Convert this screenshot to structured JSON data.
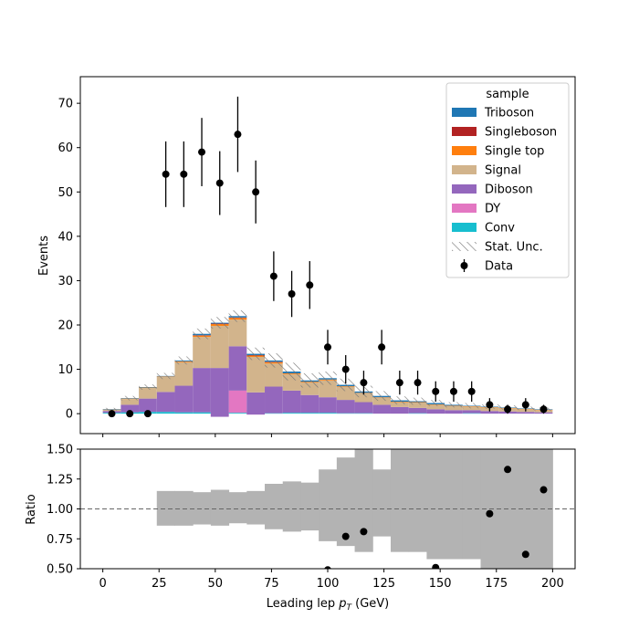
{
  "chart_data": [
    {
      "type": "bar",
      "panel": "main",
      "stacked": true,
      "xlabel": "",
      "ylabel": "Events",
      "xlim": [
        -10,
        210
      ],
      "ylim": [
        -4.5,
        76
      ],
      "yticks": [
        0,
        10,
        20,
        30,
        40,
        50,
        60,
        70
      ],
      "xticks": [
        0,
        25,
        50,
        75,
        100,
        125,
        150,
        175,
        200
      ],
      "bin_edges": [
        0,
        8,
        16,
        24,
        32,
        40,
        48,
        56,
        64,
        72,
        80,
        88,
        96,
        104,
        112,
        120,
        128,
        136,
        144,
        152,
        160,
        168,
        176,
        184,
        192,
        200
      ],
      "legend": {
        "title": "sample",
        "placement": "top-right",
        "entries": [
          {
            "label": "Triboson",
            "color": "#1f77b4",
            "kind": "patch"
          },
          {
            "label": "Singleboson",
            "color": "#b22222",
            "kind": "patch"
          },
          {
            "label": "Single top",
            "color": "#ff7f0e",
            "kind": "patch"
          },
          {
            "label": "Signal",
            "color": "#d2b48c",
            "kind": "patch"
          },
          {
            "label": "Diboson",
            "color": "#9467bd",
            "kind": "patch"
          },
          {
            "label": "DY",
            "color": "#e377c2",
            "kind": "patch"
          },
          {
            "label": "Conv",
            "color": "#17becf",
            "kind": "patch"
          },
          {
            "label": "Stat. Unc.",
            "color": "#888888",
            "kind": "hatch"
          },
          {
            "label": "Data",
            "color": "#000000",
            "kind": "errorbar"
          }
        ]
      },
      "stack_total": [
        1.0,
        3.5,
        6.0,
        8.5,
        12.0,
        18.0,
        20.5,
        22.0,
        13.5,
        12.0,
        9.5,
        7.5,
        8.0,
        6.5,
        5.0,
        4.0,
        3.0,
        2.8,
        2.4,
        2.0,
        1.8,
        1.6,
        1.4,
        1.2,
        1.0
      ],
      "series": [
        {
          "name": "Conv",
          "color": "#17becf",
          "values": [
            0.2,
            0.3,
            0.4,
            0.4,
            0.3,
            0.3,
            0.3,
            0.2,
            0.8,
            0.1,
            0.2,
            0.2,
            0.2,
            0.1,
            0.1,
            0.0,
            0.0,
            0.1,
            0.0,
            0.0,
            0.1,
            0.0,
            0.0,
            0.0,
            0.0
          ]
        },
        {
          "name": "DY",
          "color": "#e377c2",
          "values": [
            0.0,
            0.0,
            0.0,
            0.0,
            0.0,
            0.0,
            -1.0,
            5.0,
            -1.0,
            0.0,
            0.0,
            0.0,
            0.0,
            0.0,
            0.0,
            0.0,
            0.0,
            0.0,
            0.0,
            0.0,
            0.0,
            0.0,
            0.0,
            0.0,
            0.0
          ]
        },
        {
          "name": "Diboson",
          "color": "#9467bd",
          "values": [
            0.4,
            1.7,
            3.0,
            4.5,
            6.0,
            10.0,
            11.0,
            10.0,
            5.0,
            6.0,
            5.0,
            4.0,
            3.5,
            3.0,
            2.5,
            2.0,
            1.5,
            1.2,
            1.0,
            0.8,
            0.7,
            0.6,
            0.5,
            0.4,
            0.3
          ]
        },
        {
          "name": "Signal",
          "color": "#d2b48c",
          "values": [
            0.3,
            1.3,
            2.5,
            3.4,
            5.3,
            7.0,
            9.5,
            6.0,
            8.0,
            5.2,
            3.7,
            2.8,
            3.8,
            3.0,
            2.0,
            1.6,
            1.1,
            1.2,
            1.0,
            0.9,
            0.8,
            0.8,
            0.7,
            0.6,
            0.5
          ]
        },
        {
          "name": "Single top",
          "color": "#ff7f0e",
          "values": [
            0.05,
            0.1,
            0.05,
            0.1,
            0.2,
            0.3,
            0.4,
            0.4,
            0.3,
            0.3,
            0.2,
            0.2,
            0.2,
            0.1,
            0.1,
            0.1,
            0.1,
            0.1,
            0.1,
            0.1,
            0.1,
            0.1,
            0.1,
            0.1,
            0.1
          ]
        },
        {
          "name": "Singleboson",
          "color": "#b22222",
          "values": [
            0.0,
            0.0,
            0.0,
            0.0,
            0.0,
            0.1,
            0.1,
            0.1,
            0.1,
            0.1,
            0.0,
            0.0,
            0.0,
            0.0,
            0.0,
            0.0,
            0.0,
            0.0,
            0.0,
            0.0,
            0.0,
            0.0,
            0.0,
            0.0,
            0.0
          ]
        },
        {
          "name": "Triboson",
          "color": "#1f77b4",
          "values": [
            0.05,
            0.1,
            0.05,
            0.1,
            0.2,
            0.3,
            0.2,
            0.3,
            0.3,
            0.3,
            0.4,
            0.3,
            0.3,
            0.3,
            0.3,
            0.3,
            0.3,
            0.2,
            0.3,
            0.2,
            0.1,
            0.1,
            0.1,
            0.1,
            0.1
          ]
        }
      ],
      "stat_unc": [
        0.3,
        0.5,
        0.6,
        0.7,
        0.9,
        1.2,
        1.3,
        1.3,
        1.4,
        1.6,
        2.0,
        1.6,
        1.5,
        1.4,
        1.3,
        1.1,
        0.9,
        0.8,
        0.7,
        0.6,
        0.6,
        0.5,
        0.5,
        0.4,
        0.4
      ],
      "data": {
        "name": "Data",
        "x": [
          4,
          12,
          20,
          28,
          36,
          44,
          52,
          60,
          68,
          76,
          84,
          92,
          100,
          108,
          116,
          124,
          132,
          140,
          148,
          156,
          164,
          172,
          180,
          188,
          196
        ],
        "y": [
          0,
          0,
          0,
          54,
          54,
          59,
          52,
          63,
          50,
          31,
          27,
          29,
          15,
          10,
          7,
          15,
          7,
          7,
          5,
          5,
          5,
          2,
          1,
          2,
          1
        ],
        "yerr": [
          0,
          0,
          0,
          7.4,
          7.4,
          7.7,
          7.2,
          8.5,
          7.1,
          5.6,
          5.2,
          5.4,
          3.9,
          3.2,
          2.7,
          3.9,
          2.7,
          2.7,
          2.3,
          2.3,
          2.3,
          1.5,
          1.0,
          1.5,
          1.0
        ]
      }
    },
    {
      "type": "scatter",
      "panel": "ratio",
      "xlabel": "Leading lep $p_T$ (GeV)",
      "ylabel": "Ratio",
      "xlim": [
        -10,
        210
      ],
      "ylim": [
        0.5,
        1.5
      ],
      "yticks": [
        0.5,
        0.75,
        1.0,
        1.25,
        1.5
      ],
      "ytick_labels": [
        "0.50",
        "0.75",
        "1.00",
        "1.25",
        "1.50"
      ],
      "xticks": [
        0,
        25,
        50,
        75,
        100,
        125,
        150,
        175,
        200
      ],
      "reference_line": 1.0,
      "unc_band": {
        "color": "#b3b3b3",
        "bin_edges": [
          24,
          32,
          40,
          48,
          56,
          64,
          72,
          80,
          88,
          96,
          104,
          112,
          120,
          128,
          136,
          144,
          152,
          160,
          168,
          176,
          184,
          192,
          200
        ],
        "low": [
          0.86,
          0.86,
          0.87,
          0.86,
          0.88,
          0.87,
          0.83,
          0.81,
          0.82,
          0.73,
          0.69,
          0.64,
          0.77,
          0.64,
          0.64,
          0.58,
          0.58,
          0.58,
          0.0,
          0.0,
          0.0,
          0.0
        ],
        "high": [
          1.15,
          1.15,
          1.14,
          1.16,
          1.14,
          1.15,
          1.21,
          1.23,
          1.22,
          1.33,
          1.43,
          1.6,
          1.33,
          1.6,
          1.6,
          1.6,
          1.6,
          1.6,
          1.6,
          1.6,
          1.6,
          1.6
        ]
      },
      "points": {
        "x": [
          100,
          108,
          116,
          148,
          172,
          180,
          188,
          196
        ],
        "y": [
          0.49,
          0.77,
          0.81,
          0.51,
          0.96,
          1.33,
          0.62,
          1.16
        ]
      }
    }
  ]
}
